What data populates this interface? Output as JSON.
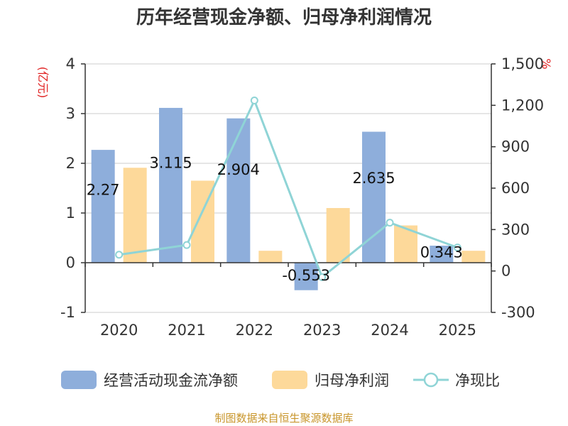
{
  "chart_data": {
    "type": "bar",
    "title": "历年经营现金净额、归母净利润情况",
    "categories": [
      "2020",
      "2021",
      "2022",
      "2023",
      "2024",
      "2025"
    ],
    "series": [
      {
        "name": "经营活动现金流净额",
        "type": "bar",
        "axis": "left",
        "color": "#8eaedb",
        "values": [
          2.27,
          3.115,
          2.904,
          -0.553,
          2.635,
          0.343
        ],
        "labels": [
          "2.27",
          "3.115",
          "2.904",
          "-0.553",
          "2.635",
          "0.343"
        ]
      },
      {
        "name": "归母净利润",
        "type": "bar",
        "axis": "left",
        "color": "#fdd99a",
        "values": [
          1.91,
          1.65,
          0.24,
          1.1,
          0.75,
          0.24
        ]
      },
      {
        "name": "净现比",
        "type": "line",
        "axis": "right",
        "color": "#8fd4d6",
        "values": [
          118,
          188,
          1235,
          -45,
          350,
          170
        ]
      }
    ],
    "left_axis": {
      "unit": "(亿元)",
      "min": -1,
      "max": 4,
      "ticks": [
        -1,
        0,
        1,
        2,
        3,
        4
      ],
      "tick_labels": [
        "-1",
        "0",
        "1",
        "2",
        "3",
        "4"
      ]
    },
    "right_axis": {
      "unit": "%",
      "min": -300,
      "max": 1500,
      "ticks": [
        -300,
        0,
        300,
        600,
        900,
        1200,
        1500
      ],
      "tick_labels": [
        "-300",
        "0",
        "300",
        "600",
        "900",
        "1,200",
        "1,500"
      ]
    },
    "grid": true,
    "legend_position": "bottom"
  },
  "footer": {
    "source": "制图数据来自恒生聚源数据库"
  }
}
